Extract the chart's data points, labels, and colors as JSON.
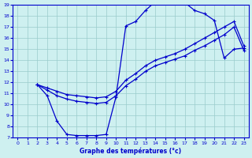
{
  "xlabel": "Graphe des températures (°c)",
  "bg_color": "#cef0f0",
  "line_color": "#0000cc",
  "grid_color": "#99cccc",
  "xlim": [
    -0.5,
    23.5
  ],
  "ylim": [
    7,
    19
  ],
  "xticks": [
    0,
    1,
    2,
    3,
    4,
    5,
    6,
    7,
    8,
    9,
    10,
    11,
    12,
    13,
    14,
    15,
    16,
    17,
    18,
    19,
    20,
    21,
    22,
    23
  ],
  "yticks": [
    7,
    8,
    9,
    10,
    11,
    12,
    13,
    14,
    15,
    16,
    17,
    18,
    19
  ],
  "line1_x": [
    2,
    3,
    4,
    5,
    6,
    7,
    8,
    9,
    10,
    11,
    12,
    13,
    14,
    15,
    16,
    17,
    18,
    19,
    20,
    21,
    22,
    23
  ],
  "line1_y": [
    11.8,
    10.8,
    8.5,
    7.3,
    7.2,
    7.2,
    7.2,
    7.3,
    10.7,
    17.1,
    17.5,
    18.5,
    19.3,
    19.5,
    19.3,
    19.2,
    18.5,
    18.2,
    17.6,
    14.2,
    15.0,
    15.1
  ],
  "line2_x": [
    2,
    3,
    4,
    5,
    6,
    7,
    8,
    9,
    10,
    11,
    12,
    13,
    14,
    15,
    16,
    17,
    18,
    19,
    20,
    21,
    22,
    23
  ],
  "line2_y": [
    11.8,
    11.5,
    11.2,
    10.9,
    10.8,
    10.7,
    10.6,
    10.7,
    11.2,
    12.2,
    12.8,
    13.5,
    14.0,
    14.3,
    14.6,
    15.0,
    15.5,
    16.0,
    16.5,
    17.0,
    17.5,
    15.3
  ],
  "line3_x": [
    2,
    3,
    4,
    5,
    6,
    7,
    8,
    9,
    10,
    11,
    12,
    13,
    14,
    15,
    16,
    17,
    18,
    19,
    20,
    21,
    22,
    23
  ],
  "line3_y": [
    11.8,
    11.3,
    10.8,
    10.5,
    10.3,
    10.2,
    10.1,
    10.2,
    10.8,
    11.7,
    12.3,
    13.0,
    13.5,
    13.8,
    14.1,
    14.4,
    14.9,
    15.3,
    15.8,
    16.3,
    17.0,
    14.9
  ]
}
